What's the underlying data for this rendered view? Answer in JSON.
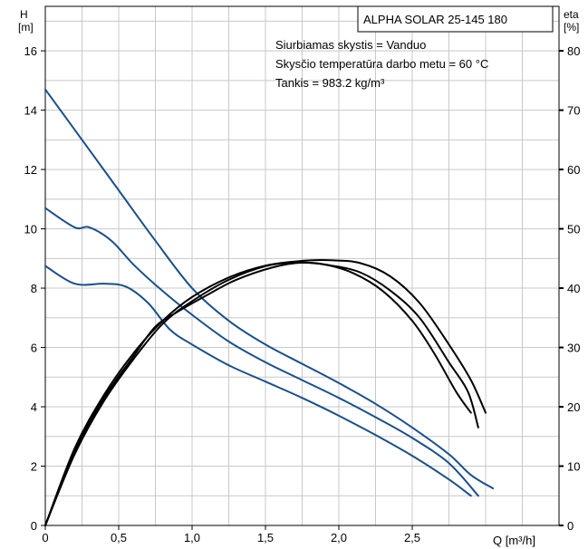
{
  "chart_data": {
    "type": "line",
    "title": "ALPHA SOLAR 25-145  180",
    "notes": [
      "Siurbiamas skystis = Vanduo",
      "Skysčio temperatūra darbo metu = 60 °C",
      "Tankis = 983.2 kg/m³"
    ],
    "xlabel": "Q [m³/h]",
    "ylabel_left_name": "H",
    "ylabel_left_unit": "[m]",
    "ylabel_right_name": "eta",
    "ylabel_right_unit": "[%]",
    "xlim": [
      0,
      3.5
    ],
    "ylim_left": [
      0,
      17.5
    ],
    "ylim_right": [
      0,
      87.5
    ],
    "grid": true,
    "x_ticks": [
      {
        "v": 0,
        "t": "0"
      },
      {
        "v": 0.5,
        "t": "0,5"
      },
      {
        "v": 1.0,
        "t": "1,0"
      },
      {
        "v": 1.5,
        "t": "1,5"
      },
      {
        "v": 2.0,
        "t": "2,0"
      },
      {
        "v": 2.5,
        "t": "2,5"
      }
    ],
    "y_left_ticks": [
      {
        "v": 0,
        "t": "0"
      },
      {
        "v": 2,
        "t": "2"
      },
      {
        "v": 4,
        "t": "4"
      },
      {
        "v": 6,
        "t": "6"
      },
      {
        "v": 8,
        "t": "8"
      },
      {
        "v": 10,
        "t": "10"
      },
      {
        "v": 12,
        "t": "12"
      },
      {
        "v": 14,
        "t": "14"
      },
      {
        "v": 16,
        "t": "16"
      }
    ],
    "y_right_ticks": [
      {
        "v": 0,
        "t": "0"
      },
      {
        "v": 10,
        "t": "10"
      },
      {
        "v": 20,
        "t": "20"
      },
      {
        "v": 30,
        "t": "30"
      },
      {
        "v": 40,
        "t": "40"
      },
      {
        "v": 50,
        "t": "50"
      },
      {
        "v": 60,
        "t": "60"
      },
      {
        "v": 70,
        "t": "70"
      },
      {
        "v": 80,
        "t": "80"
      }
    ],
    "series": [
      {
        "kind": "head",
        "axis": "left",
        "color": "#1a4f8a",
        "points": [
          [
            0,
            14.7
          ],
          [
            0.25,
            13.0
          ],
          [
            0.5,
            11.3
          ],
          [
            0.75,
            9.6
          ],
          [
            1.0,
            8.0
          ],
          [
            1.25,
            6.9
          ],
          [
            1.5,
            6.1
          ],
          [
            1.75,
            5.45
          ],
          [
            2.0,
            4.8
          ],
          [
            2.25,
            4.1
          ],
          [
            2.5,
            3.3
          ],
          [
            2.75,
            2.4
          ],
          [
            2.9,
            1.7
          ],
          [
            3.05,
            1.25
          ]
        ]
      },
      {
        "kind": "head",
        "axis": "left",
        "color": "#1a4f8a",
        "points": [
          [
            0,
            10.7
          ],
          [
            0.2,
            10.05
          ],
          [
            0.3,
            10.05
          ],
          [
            0.45,
            9.6
          ],
          [
            0.6,
            8.8
          ],
          [
            0.8,
            7.9
          ],
          [
            1.0,
            7.1
          ],
          [
            1.25,
            6.2
          ],
          [
            1.5,
            5.5
          ],
          [
            1.75,
            4.9
          ],
          [
            2.0,
            4.3
          ],
          [
            2.25,
            3.65
          ],
          [
            2.5,
            2.95
          ],
          [
            2.75,
            2.1
          ],
          [
            2.95,
            1.0
          ]
        ]
      },
      {
        "kind": "head",
        "axis": "left",
        "color": "#1a4f8a",
        "points": [
          [
            0,
            8.75
          ],
          [
            0.2,
            8.15
          ],
          [
            0.4,
            8.15
          ],
          [
            0.55,
            8.05
          ],
          [
            0.7,
            7.5
          ],
          [
            0.85,
            6.6
          ],
          [
            1.0,
            6.1
          ],
          [
            1.25,
            5.4
          ],
          [
            1.5,
            4.85
          ],
          [
            1.75,
            4.3
          ],
          [
            2.0,
            3.7
          ],
          [
            2.25,
            3.05
          ],
          [
            2.5,
            2.35
          ],
          [
            2.75,
            1.55
          ],
          [
            2.9,
            1.0
          ]
        ]
      },
      {
        "kind": "eta",
        "axis": "right",
        "color": "#000000",
        "points": [
          [
            0,
            0
          ],
          [
            0.2,
            13
          ],
          [
            0.4,
            22
          ],
          [
            0.6,
            29
          ],
          [
            0.8,
            34.5
          ],
          [
            1.0,
            38.5
          ],
          [
            1.25,
            41.8
          ],
          [
            1.5,
            43.8
          ],
          [
            1.75,
            44.6
          ],
          [
            1.95,
            44.7
          ],
          [
            2.15,
            44.2
          ],
          [
            2.35,
            42.0
          ],
          [
            2.55,
            37.5
          ],
          [
            2.75,
            30.5
          ],
          [
            2.9,
            24.5
          ],
          [
            3.0,
            19.0
          ]
        ]
      },
      {
        "kind": "eta",
        "axis": "right",
        "color": "#000000",
        "points": [
          [
            0,
            0
          ],
          [
            0.2,
            12.5
          ],
          [
            0.4,
            21.5
          ],
          [
            0.6,
            28.5
          ],
          [
            0.75,
            33.5
          ],
          [
            0.9,
            36.0
          ],
          [
            1.1,
            38.8
          ],
          [
            1.3,
            41.4
          ],
          [
            1.55,
            43.5
          ],
          [
            1.75,
            44.3
          ],
          [
            1.95,
            43.8
          ],
          [
            2.15,
            42.6
          ],
          [
            2.35,
            39.6
          ],
          [
            2.55,
            35.0
          ],
          [
            2.75,
            27.5
          ],
          [
            2.88,
            22.5
          ],
          [
            2.95,
            16.5
          ]
        ]
      },
      {
        "kind": "eta",
        "axis": "right",
        "color": "#000000",
        "points": [
          [
            0,
            0
          ],
          [
            0.2,
            12
          ],
          [
            0.4,
            21
          ],
          [
            0.6,
            28
          ],
          [
            0.8,
            34
          ],
          [
            1.0,
            37.8
          ],
          [
            1.25,
            41.4
          ],
          [
            1.5,
            43.7
          ],
          [
            1.7,
            44.3
          ],
          [
            1.9,
            44.0
          ],
          [
            2.1,
            42.5
          ],
          [
            2.3,
            39.5
          ],
          [
            2.5,
            34.5
          ],
          [
            2.65,
            29.0
          ],
          [
            2.8,
            22.5
          ],
          [
            2.9,
            19.0
          ]
        ]
      }
    ]
  }
}
